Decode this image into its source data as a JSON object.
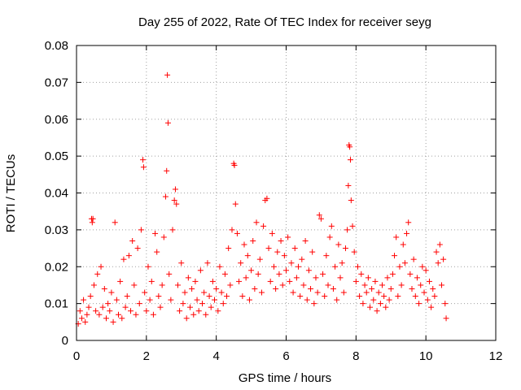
{
  "chart_data": {
    "type": "scatter",
    "title": "Day 255 of 2022, Rate Of TEC Index for receiver seyg",
    "xlabel": "GPS time / hours",
    "ylabel": "ROTI / TECUs",
    "xlim": [
      0,
      12
    ],
    "ylim": [
      0,
      0.08
    ],
    "x_ticks": [
      "0",
      "2",
      "4",
      "6",
      "8",
      "10",
      "12"
    ],
    "y_ticks": [
      "0",
      "0.01",
      "0.02",
      "0.03",
      "0.04",
      "0.05",
      "0.06",
      "0.07",
      "0.08"
    ],
    "grid": true,
    "marker": "+",
    "color": "#ff0000",
    "series": [
      {
        "name": "ROTI",
        "points": [
          [
            0.05,
            0.0045
          ],
          [
            0.1,
            0.008
          ],
          [
            0.15,
            0.006
          ],
          [
            0.2,
            0.011
          ],
          [
            0.25,
            0.005
          ],
          [
            0.3,
            0.007
          ],
          [
            0.35,
            0.009
          ],
          [
            0.4,
            0.012
          ],
          [
            0.43,
            0.033
          ],
          [
            0.45,
            0.032
          ],
          [
            0.47,
            0.033
          ],
          [
            0.5,
            0.015
          ],
          [
            0.55,
            0.008
          ],
          [
            0.6,
            0.018
          ],
          [
            0.65,
            0.007
          ],
          [
            0.7,
            0.02
          ],
          [
            0.75,
            0.009
          ],
          [
            0.8,
            0.014
          ],
          [
            0.85,
            0.006
          ],
          [
            0.9,
            0.01
          ],
          [
            0.95,
            0.008
          ],
          [
            1.0,
            0.013
          ],
          [
            1.05,
            0.005
          ],
          [
            1.1,
            0.032
          ],
          [
            1.15,
            0.011
          ],
          [
            1.2,
            0.007
          ],
          [
            1.25,
            0.016
          ],
          [
            1.3,
            0.006
          ],
          [
            1.35,
            0.022
          ],
          [
            1.4,
            0.009
          ],
          [
            1.45,
            0.012
          ],
          [
            1.5,
            0.023
          ],
          [
            1.55,
            0.008
          ],
          [
            1.6,
            0.027
          ],
          [
            1.65,
            0.015
          ],
          [
            1.7,
            0.007
          ],
          [
            1.75,
            0.025
          ],
          [
            1.8,
            0.01
          ],
          [
            1.85,
            0.03
          ],
          [
            1.9,
            0.049
          ],
          [
            1.92,
            0.047
          ],
          [
            1.95,
            0.013
          ],
          [
            2.0,
            0.008
          ],
          [
            2.05,
            0.02
          ],
          [
            2.1,
            0.011
          ],
          [
            2.15,
            0.016
          ],
          [
            2.2,
            0.007
          ],
          [
            2.25,
            0.029
          ],
          [
            2.3,
            0.024
          ],
          [
            2.35,
            0.012
          ],
          [
            2.4,
            0.009
          ],
          [
            2.45,
            0.015
          ],
          [
            2.5,
            0.028
          ],
          [
            2.55,
            0.039
          ],
          [
            2.58,
            0.046
          ],
          [
            2.6,
            0.072
          ],
          [
            2.62,
            0.059
          ],
          [
            2.65,
            0.018
          ],
          [
            2.7,
            0.011
          ],
          [
            2.75,
            0.03
          ],
          [
            2.8,
            0.038
          ],
          [
            2.83,
            0.041
          ],
          [
            2.86,
            0.037
          ],
          [
            2.9,
            0.015
          ],
          [
            2.95,
            0.008
          ],
          [
            3.0,
            0.021
          ],
          [
            3.05,
            0.01
          ],
          [
            3.1,
            0.013
          ],
          [
            3.15,
            0.006
          ],
          [
            3.2,
            0.017
          ],
          [
            3.25,
            0.009
          ],
          [
            3.3,
            0.014
          ],
          [
            3.35,
            0.007
          ],
          [
            3.4,
            0.016
          ],
          [
            3.45,
            0.011
          ],
          [
            3.5,
            0.008
          ],
          [
            3.55,
            0.019
          ],
          [
            3.6,
            0.01
          ],
          [
            3.65,
            0.013
          ],
          [
            3.7,
            0.007
          ],
          [
            3.75,
            0.021
          ],
          [
            3.8,
            0.012
          ],
          [
            3.85,
            0.009
          ],
          [
            3.9,
            0.016
          ],
          [
            3.95,
            0.011
          ],
          [
            4.0,
            0.014
          ],
          [
            4.05,
            0.008
          ],
          [
            4.1,
            0.02
          ],
          [
            4.15,
            0.013
          ],
          [
            4.2,
            0.01
          ],
          [
            4.25,
            0.018
          ],
          [
            4.3,
            0.012
          ],
          [
            4.35,
            0.025
          ],
          [
            4.4,
            0.015
          ],
          [
            4.45,
            0.03
          ],
          [
            4.5,
            0.048
          ],
          [
            4.52,
            0.0475
          ],
          [
            4.55,
            0.037
          ],
          [
            4.6,
            0.029
          ],
          [
            4.65,
            0.016
          ],
          [
            4.7,
            0.021
          ],
          [
            4.75,
            0.012
          ],
          [
            4.8,
            0.026
          ],
          [
            4.85,
            0.017
          ],
          [
            4.9,
            0.023
          ],
          [
            4.95,
            0.011
          ],
          [
            5.0,
            0.019
          ],
          [
            5.05,
            0.027
          ],
          [
            5.1,
            0.014
          ],
          [
            5.15,
            0.032
          ],
          [
            5.2,
            0.018
          ],
          [
            5.25,
            0.022
          ],
          [
            5.3,
            0.013
          ],
          [
            5.35,
            0.031
          ],
          [
            5.4,
            0.038
          ],
          [
            5.45,
            0.0385
          ],
          [
            5.5,
            0.025
          ],
          [
            5.55,
            0.016
          ],
          [
            5.6,
            0.029
          ],
          [
            5.65,
            0.02
          ],
          [
            5.7,
            0.014
          ],
          [
            5.75,
            0.024
          ],
          [
            5.8,
            0.018
          ],
          [
            5.85,
            0.027
          ],
          [
            5.9,
            0.015
          ],
          [
            5.95,
            0.023
          ],
          [
            6.0,
            0.019
          ],
          [
            6.05,
            0.028
          ],
          [
            6.1,
            0.016
          ],
          [
            6.15,
            0.021
          ],
          [
            6.2,
            0.013
          ],
          [
            6.25,
            0.025
          ],
          [
            6.3,
            0.017
          ],
          [
            6.35,
            0.02
          ],
          [
            6.4,
            0.012
          ],
          [
            6.45,
            0.022
          ],
          [
            6.5,
            0.015
          ],
          [
            6.55,
            0.027
          ],
          [
            6.6,
            0.011
          ],
          [
            6.65,
            0.019
          ],
          [
            6.7,
            0.014
          ],
          [
            6.75,
            0.024
          ],
          [
            6.8,
            0.01
          ],
          [
            6.85,
            0.017
          ],
          [
            6.9,
            0.013
          ],
          [
            6.95,
            0.034
          ],
          [
            7.0,
            0.033
          ],
          [
            7.05,
            0.018
          ],
          [
            7.1,
            0.012
          ],
          [
            7.15,
            0.023
          ],
          [
            7.2,
            0.015
          ],
          [
            7.25,
            0.028
          ],
          [
            7.3,
            0.031
          ],
          [
            7.35,
            0.014
          ],
          [
            7.4,
            0.02
          ],
          [
            7.45,
            0.011
          ],
          [
            7.5,
            0.026
          ],
          [
            7.55,
            0.017
          ],
          [
            7.6,
            0.021
          ],
          [
            7.65,
            0.013
          ],
          [
            7.7,
            0.025
          ],
          [
            7.75,
            0.03
          ],
          [
            7.78,
            0.042
          ],
          [
            7.8,
            0.053
          ],
          [
            7.82,
            0.0525
          ],
          [
            7.84,
            0.049
          ],
          [
            7.86,
            0.038
          ],
          [
            7.9,
            0.031
          ],
          [
            7.95,
            0.024
          ],
          [
            8.0,
            0.016
          ],
          [
            8.05,
            0.02
          ],
          [
            8.1,
            0.012
          ],
          [
            8.15,
            0.018
          ],
          [
            8.2,
            0.01
          ],
          [
            8.25,
            0.015
          ],
          [
            8.3,
            0.013
          ],
          [
            8.35,
            0.017
          ],
          [
            8.4,
            0.009
          ],
          [
            8.45,
            0.014
          ],
          [
            8.5,
            0.011
          ],
          [
            8.55,
            0.016
          ],
          [
            8.6,
            0.008
          ],
          [
            8.65,
            0.013
          ],
          [
            8.7,
            0.01
          ],
          [
            8.75,
            0.015
          ],
          [
            8.8,
            0.012
          ],
          [
            8.85,
            0.009
          ],
          [
            8.9,
            0.017
          ],
          [
            8.95,
            0.011
          ],
          [
            9.0,
            0.014
          ],
          [
            9.05,
            0.018
          ],
          [
            9.1,
            0.023
          ],
          [
            9.15,
            0.028
          ],
          [
            9.2,
            0.012
          ],
          [
            9.25,
            0.02
          ],
          [
            9.3,
            0.015
          ],
          [
            9.35,
            0.026
          ],
          [
            9.4,
            0.021
          ],
          [
            9.45,
            0.029
          ],
          [
            9.5,
            0.032
          ],
          [
            9.55,
            0.018
          ],
          [
            9.6,
            0.014
          ],
          [
            9.65,
            0.022
          ],
          [
            9.7,
            0.012
          ],
          [
            9.75,
            0.017
          ],
          [
            9.8,
            0.01
          ],
          [
            9.85,
            0.015
          ],
          [
            9.9,
            0.02
          ],
          [
            9.95,
            0.013
          ],
          [
            10.0,
            0.019
          ],
          [
            10.05,
            0.011
          ],
          [
            10.1,
            0.016
          ],
          [
            10.15,
            0.009
          ],
          [
            10.2,
            0.014
          ],
          [
            10.25,
            0.012
          ],
          [
            10.3,
            0.024
          ],
          [
            10.35,
            0.021
          ],
          [
            10.4,
            0.026
          ],
          [
            10.45,
            0.015
          ],
          [
            10.5,
            0.022
          ],
          [
            10.55,
            0.01
          ],
          [
            10.58,
            0.006
          ]
        ]
      }
    ]
  }
}
